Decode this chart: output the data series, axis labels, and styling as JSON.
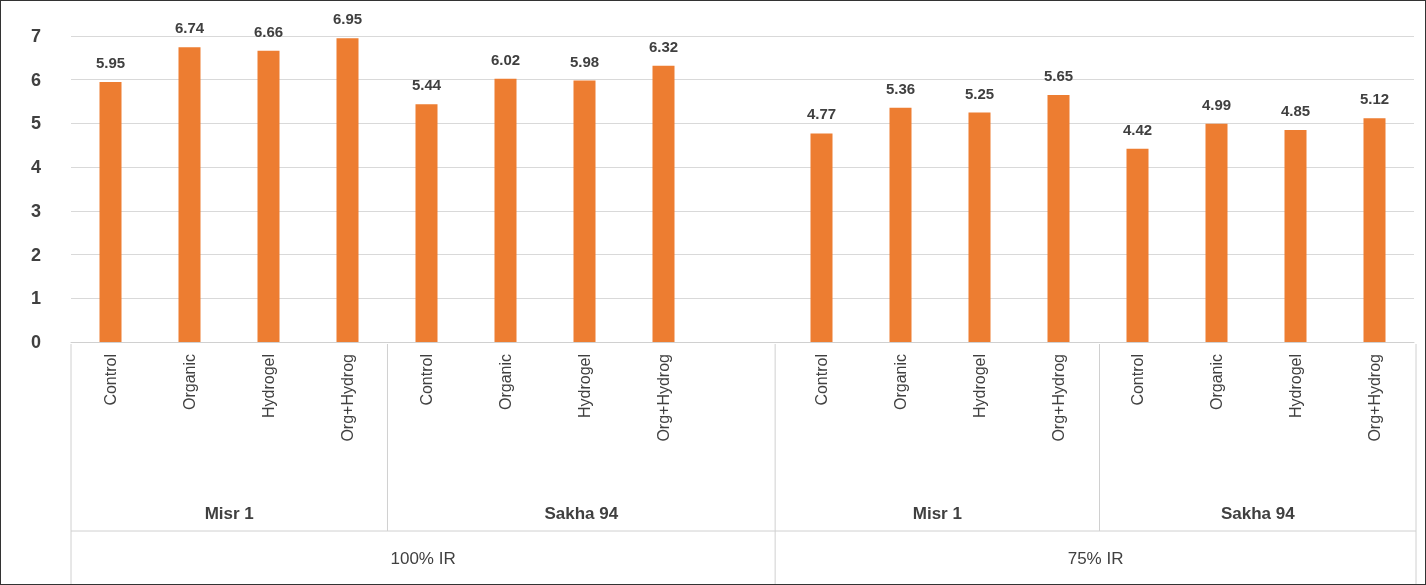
{
  "chart_data": {
    "type": "bar",
    "categories": [
      "Control",
      "Organic",
      "Hydrogel",
      "Org+Hydrog",
      "Control",
      "Organic",
      "Hydrogel",
      "Org+Hydrog",
      null,
      "Control",
      "Organic",
      "Hydrogel",
      "Org+Hydrog",
      "Control",
      "Organic",
      "Hydrogel",
      "Org+Hydrog"
    ],
    "values": [
      5.95,
      6.74,
      6.66,
      6.95,
      5.44,
      6.02,
      5.98,
      6.32,
      null,
      4.77,
      5.36,
      5.25,
      5.65,
      4.42,
      4.99,
      4.85,
      5.12
    ],
    "color": "#ed7d31",
    "ylim": [
      0,
      7
    ],
    "yticks": [
      0,
      1,
      2,
      3,
      4,
      5,
      6,
      7
    ],
    "grid": "y",
    "data_labels": true,
    "annotations": [
      "Misr 1",
      "Sakha 94",
      "Misr 1",
      "Sakha 94",
      "100% IR",
      "75% IR"
    ]
  }
}
